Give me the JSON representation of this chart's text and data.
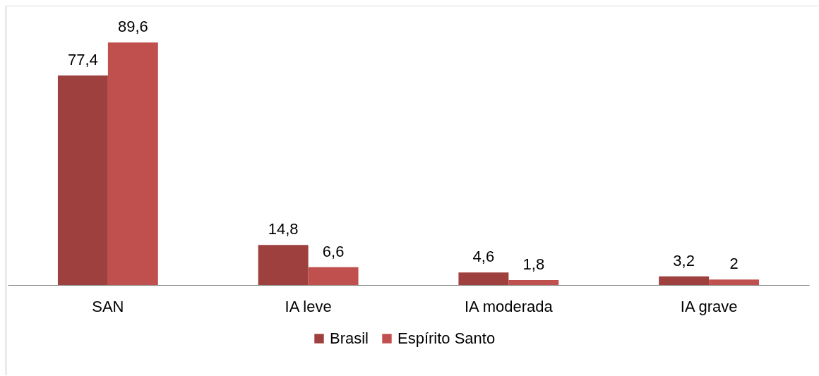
{
  "chart_data": {
    "type": "bar",
    "categories": [
      "SAN",
      "IA leve",
      "IA moderada",
      "IA grave"
    ],
    "series": [
      {
        "name": "Brasil",
        "color": "#9e413e",
        "values": [
          77.4,
          14.8,
          4.6,
          3.2
        ],
        "value_labels": [
          "77,4",
          "14,8",
          "4,6",
          "3,2"
        ]
      },
      {
        "name": "Espírito Santo",
        "color": "#c0504d",
        "values": [
          89.6,
          6.6,
          1.8,
          2
        ],
        "value_labels": [
          "89,6",
          "6,6",
          "1,8",
          "2"
        ]
      }
    ],
    "legend": "bottom"
  }
}
